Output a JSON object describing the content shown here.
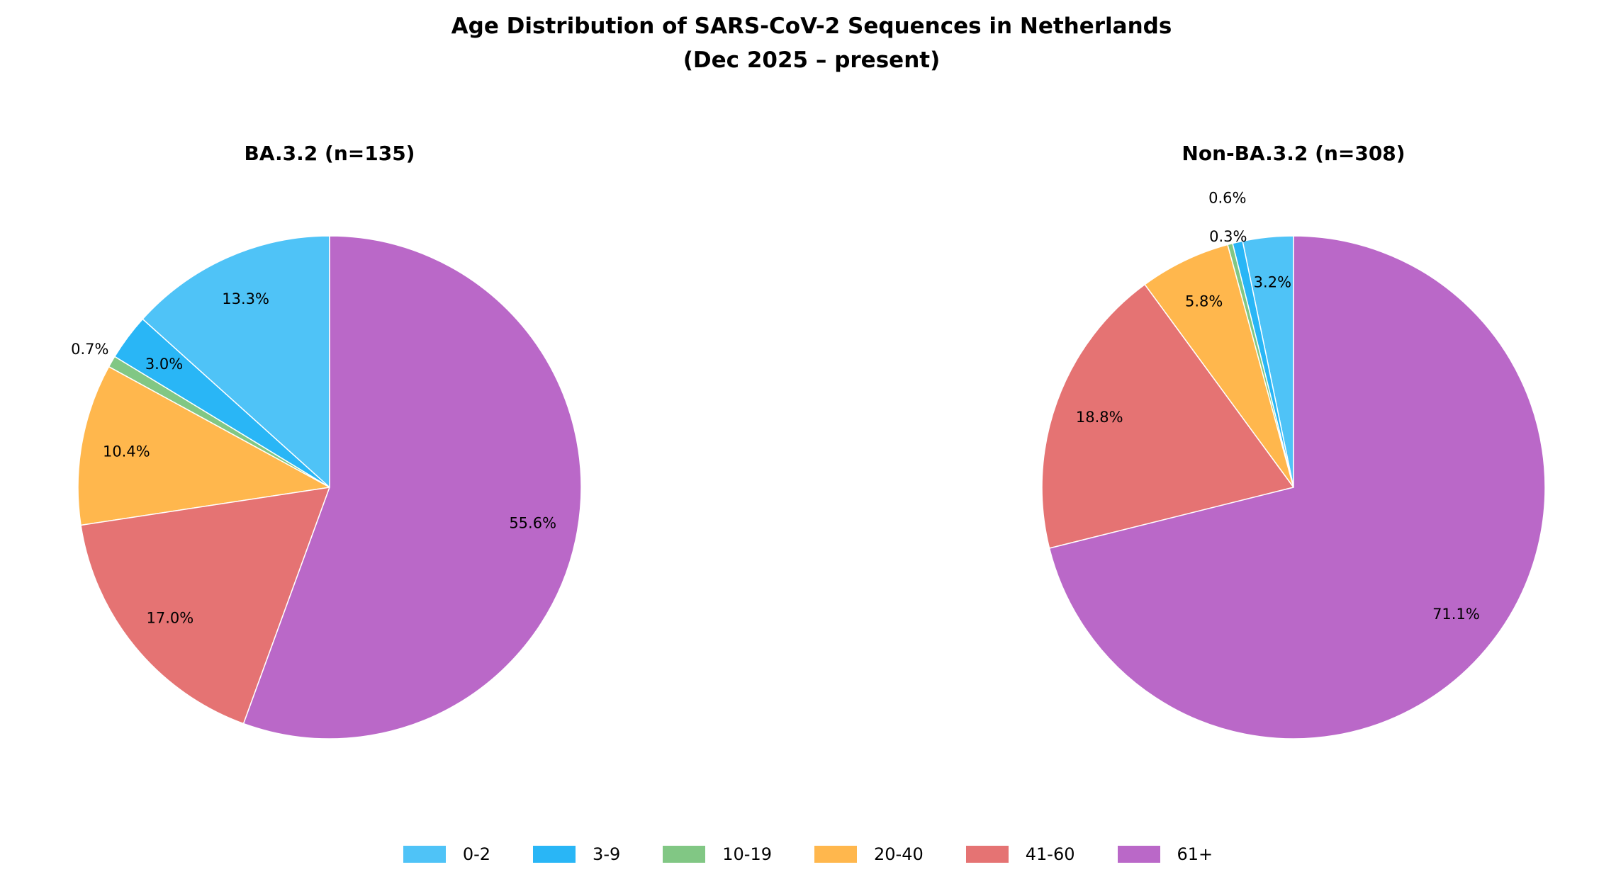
{
  "chart_data": [
    {
      "type": "pie",
      "title": "BA.3.2 (n=135)",
      "categories": [
        "0-2",
        "3-9",
        "10-19",
        "20-40",
        "41-60",
        "61+"
      ],
      "values": [
        18,
        4,
        1,
        14,
        23,
        75
      ],
      "labels": [
        "13.3%",
        "3.0%",
        "0.7%",
        "10.4%",
        "17.0%",
        "55.6%"
      ],
      "start_angle": 90,
      "direction": "counterclockwise"
    },
    {
      "type": "pie",
      "title": "Non-BA.3.2 (n=308)",
      "categories": [
        "0-2",
        "3-9",
        "10-19",
        "20-40",
        "41-60",
        "61+"
      ],
      "values": [
        10,
        2,
        1,
        18,
        58,
        219
      ],
      "labels": [
        "3.2%",
        "0.6%",
        "0.3%",
        "5.8%",
        "18.8%",
        "71.1%"
      ],
      "start_angle": 90,
      "direction": "counterclockwise"
    }
  ],
  "figure": {
    "title_line1": "Age Distribution of SARS-CoV-2 Sequences in Netherlands",
    "title_line2": "(Dec 2025 – present)"
  },
  "legend": {
    "placement": "bottom-center",
    "items": [
      {
        "label": "0-2",
        "color": "#4FC3F7"
      },
      {
        "label": "3-9",
        "color": "#29B6F6"
      },
      {
        "label": "10-19",
        "color": "#81C784"
      },
      {
        "label": "20-40",
        "color": "#FFB74D"
      },
      {
        "label": "41-60",
        "color": "#E57373"
      },
      {
        "label": "61+",
        "color": "#BA68C8"
      }
    ]
  }
}
